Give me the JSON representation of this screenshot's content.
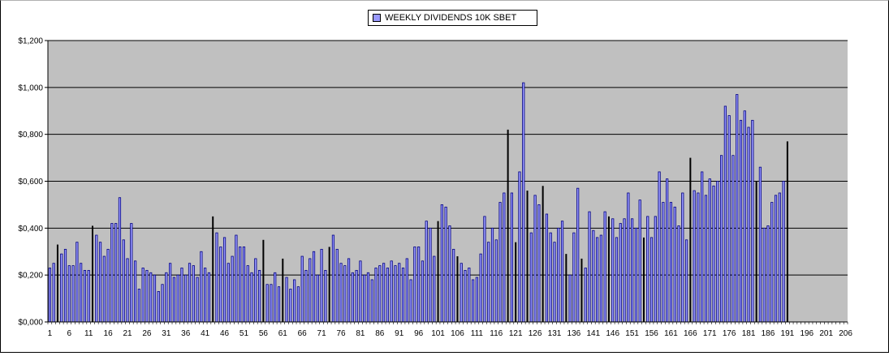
{
  "chart_data": {
    "type": "bar",
    "ylim": [
      0,
      1.2
    ],
    "y_ticks": [
      "$0,000",
      "$0,200",
      "$0,400",
      "$0,600",
      "$0,800",
      "$1,000",
      "$1,200"
    ],
    "y_tick_values": [
      0,
      0.2,
      0.4,
      0.6,
      0.8,
      1.0,
      1.2
    ],
    "x_ticks": [
      1,
      6,
      11,
      16,
      21,
      26,
      31,
      36,
      41,
      46,
      51,
      56,
      61,
      66,
      71,
      76,
      81,
      86,
      91,
      96,
      101,
      106,
      111,
      116,
      121,
      126,
      131,
      136,
      141,
      146,
      151,
      156,
      161,
      166,
      171,
      176,
      181,
      186,
      191,
      196,
      201,
      206
    ],
    "x_range": [
      1,
      206
    ],
    "grid": "horizontal major gridlines",
    "legend_position": "top-center",
    "colors": {
      "plot_background": "#c0c0c0",
      "bar_fill": "#9999ff",
      "bar_outline": "#000080",
      "frame": "#000000"
    },
    "series": [
      {
        "name": "WEEKLY DIVIDENDS 10K SBET",
        "values": [
          0.23,
          0.25,
          0.33,
          0.29,
          0.31,
          0.24,
          0.24,
          0.34,
          0.25,
          0.22,
          0.22,
          0.41,
          0.37,
          0.34,
          0.28,
          0.31,
          0.42,
          0.42,
          0.53,
          0.35,
          0.27,
          0.42,
          0.26,
          0.14,
          0.23,
          0.22,
          0.21,
          0.2,
          0.13,
          0.16,
          0.21,
          0.25,
          0.19,
          0.2,
          0.23,
          0.2,
          0.25,
          0.24,
          0.19,
          0.3,
          0.23,
          0.21,
          0.45,
          0.38,
          0.32,
          0.36,
          0.25,
          0.28,
          0.37,
          0.32,
          0.32,
          0.24,
          0.21,
          0.27,
          0.22,
          0.35,
          0.16,
          0.16,
          0.21,
          0.15,
          0.27,
          0.19,
          0.14,
          0.18,
          0.15,
          0.28,
          0.22,
          0.27,
          0.3,
          0.2,
          0.31,
          0.22,
          0.32,
          0.37,
          0.31,
          0.25,
          0.24,
          0.27,
          0.21,
          0.22,
          0.26,
          0.2,
          0.21,
          0.18,
          0.23,
          0.24,
          0.25,
          0.23,
          0.26,
          0.24,
          0.25,
          0.23,
          0.27,
          0.18,
          0.32,
          0.32,
          0.26,
          0.43,
          0.4,
          0.28,
          0.43,
          0.5,
          0.49,
          0.41,
          0.31,
          0.28,
          0.25,
          0.22,
          0.23,
          0.18,
          0.19,
          0.29,
          0.45,
          0.34,
          0.4,
          0.35,
          0.51,
          0.55,
          0.82,
          0.55,
          0.34,
          0.64,
          1.02,
          0.56,
          0.38,
          0.54,
          0.5,
          0.58,
          0.46,
          0.38,
          0.34,
          0.4,
          0.43,
          0.29,
          0.2,
          0.38,
          0.57,
          0.27,
          0.23,
          0.47,
          0.39,
          0.36,
          0.37,
          0.47,
          0.45,
          0.44,
          0.36,
          0.42,
          0.44,
          0.55,
          0.44,
          0.4,
          0.52,
          0.36,
          0.45,
          0.36,
          0.45,
          0.64,
          0.51,
          0.61,
          0.51,
          0.49,
          0.41,
          0.55,
          0.35,
          0.7,
          0.56,
          0.55,
          0.64,
          0.54,
          0.61,
          0.58,
          0.6,
          0.71,
          0.92,
          0.88,
          0.71,
          0.97,
          0.86,
          0.9,
          0.83,
          0.86,
          0.6,
          0.66,
          0.4,
          0.41,
          0.51,
          0.54,
          0.55,
          0.6,
          0.77
        ]
      }
    ],
    "dark_bar_indices": [
      2,
      11,
      42,
      55,
      60,
      72,
      100,
      105,
      118,
      120,
      123,
      127,
      133,
      137,
      144,
      153,
      165,
      182,
      190
    ]
  }
}
